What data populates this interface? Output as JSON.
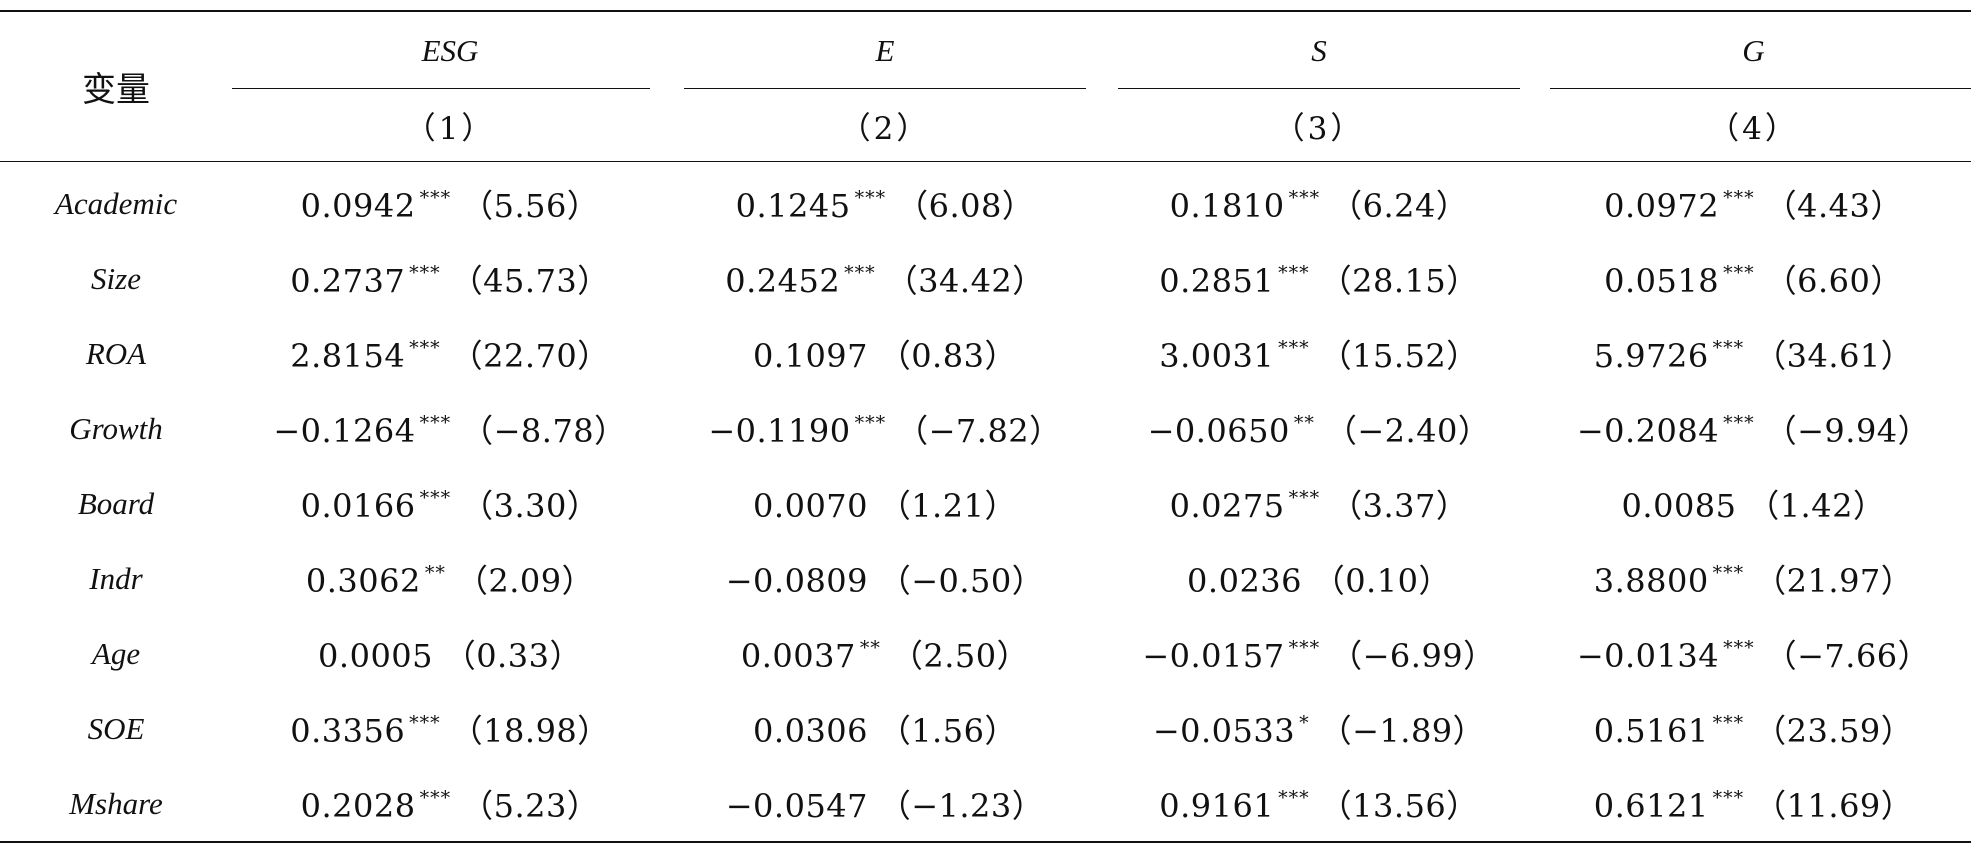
{
  "header": {
    "var_label": "变量",
    "groups": [
      "ESG",
      "E",
      "S",
      "G"
    ],
    "col_numbers": [
      "（1）",
      "（2）",
      "（3）",
      "（4）"
    ]
  },
  "rows": [
    {
      "name": "Academic",
      "cells": [
        {
          "coef": "0.0942",
          "stars": "***",
          "t": "（5.56）"
        },
        {
          "coef": "0.1245",
          "stars": "***",
          "t": "（6.08）"
        },
        {
          "coef": "0.1810",
          "stars": "***",
          "t": "（6.24）"
        },
        {
          "coef": "0.0972",
          "stars": "***",
          "t": "（4.43）"
        }
      ]
    },
    {
      "name": "Size",
      "cells": [
        {
          "coef": "0.2737",
          "stars": "***",
          "t": "（45.73）"
        },
        {
          "coef": "0.2452",
          "stars": "***",
          "t": "（34.42）"
        },
        {
          "coef": "0.2851",
          "stars": "***",
          "t": "（28.15）"
        },
        {
          "coef": "0.0518",
          "stars": "***",
          "t": "（6.60）"
        }
      ]
    },
    {
      "name": "ROA",
      "cells": [
        {
          "coef": "2.8154",
          "stars": "***",
          "t": "（22.70）"
        },
        {
          "coef": "0.1097",
          "stars": "",
          "t": "（0.83）"
        },
        {
          "coef": "3.0031",
          "stars": "***",
          "t": "（15.52）"
        },
        {
          "coef": "5.9726",
          "stars": "***",
          "t": "（34.61）"
        }
      ]
    },
    {
      "name": "Growth",
      "cells": [
        {
          "coef": "−0.1264",
          "stars": "***",
          "t": "（−8.78）"
        },
        {
          "coef": "−0.1190",
          "stars": "***",
          "t": "（−7.82）"
        },
        {
          "coef": "−0.0650",
          "stars": "**",
          "t": "（−2.40）"
        },
        {
          "coef": "−0.2084",
          "stars": "***",
          "t": "（−9.94）"
        }
      ]
    },
    {
      "name": "Board",
      "cells": [
        {
          "coef": "0.0166",
          "stars": "***",
          "t": "（3.30）"
        },
        {
          "coef": "0.0070",
          "stars": "",
          "t": "（1.21）"
        },
        {
          "coef": "0.0275",
          "stars": "***",
          "t": "（3.37）"
        },
        {
          "coef": "0.0085",
          "stars": "",
          "t": "（1.42）"
        }
      ]
    },
    {
      "name": "Indr",
      "cells": [
        {
          "coef": "0.3062",
          "stars": "**",
          "t": "（2.09）"
        },
        {
          "coef": "−0.0809",
          "stars": "",
          "t": "（−0.50）"
        },
        {
          "coef": "0.0236",
          "stars": "",
          "t": "（0.10）"
        },
        {
          "coef": "3.8800",
          "stars": "***",
          "t": "（21.97）"
        }
      ]
    },
    {
      "name": "Age",
      "cells": [
        {
          "coef": "0.0005",
          "stars": "",
          "t": "（0.33）"
        },
        {
          "coef": "0.0037",
          "stars": "**",
          "t": "（2.50）"
        },
        {
          "coef": "−0.0157",
          "stars": "***",
          "t": "（−6.99）"
        },
        {
          "coef": "−0.0134",
          "stars": "***",
          "t": "（−7.66）"
        }
      ]
    },
    {
      "name": "SOE",
      "cells": [
        {
          "coef": "0.3356",
          "stars": "***",
          "t": "（18.98）"
        },
        {
          "coef": "0.0306",
          "stars": "",
          "t": "（1.56）"
        },
        {
          "coef": "−0.0533",
          "stars": "*",
          "t": "（−1.89）"
        },
        {
          "coef": "0.5161",
          "stars": "***",
          "t": "（23.59）"
        }
      ]
    },
    {
      "name": "Mshare",
      "cells": [
        {
          "coef": "0.2028",
          "stars": "***",
          "t": "（5.23）"
        },
        {
          "coef": "−0.0547",
          "stars": "",
          "t": "（−1.23）"
        },
        {
          "coef": "0.9161",
          "stars": "***",
          "t": "（13.56）"
        },
        {
          "coef": "0.6121",
          "stars": "***",
          "t": "（11.69）"
        }
      ]
    }
  ]
}
